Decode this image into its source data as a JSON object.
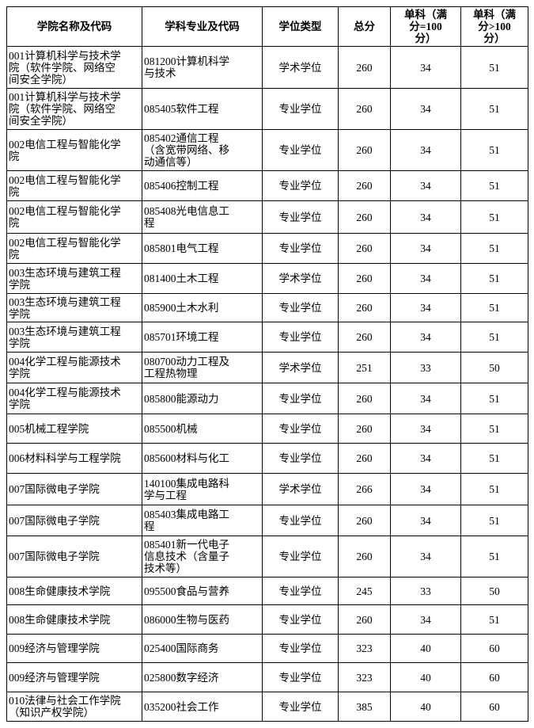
{
  "table": {
    "headers": [
      "学院名称及代码",
      "学科专业及代码",
      "学位类型",
      "总分",
      "单科（满\n分=100\n分）",
      "单科（满\n分>100\n分）"
    ],
    "rows": [
      {
        "college": "001计算机科学与技术学\n院（软件学院、网络空\n间安全学院）",
        "major": "081200计算机科学\n与技术",
        "degree_type": "学术学位",
        "total": "260",
        "sub_max100": "34",
        "sub_over100": "51"
      },
      {
        "college": "001计算机科学与技术学\n院（软件学院、网络空\n间安全学院）",
        "major": "085405软件工程",
        "degree_type": "专业学位",
        "total": "260",
        "sub_max100": "34",
        "sub_over100": "51"
      },
      {
        "college": "002电信工程与智能化学\n院",
        "major": "085402通信工程\n（含宽带网络、移\n动通信等）",
        "degree_type": "专业学位",
        "total": "260",
        "sub_max100": "34",
        "sub_over100": "51"
      },
      {
        "college": "002电信工程与智能化学\n院",
        "major": "085406控制工程",
        "degree_type": "专业学位",
        "total": "260",
        "sub_max100": "34",
        "sub_over100": "51"
      },
      {
        "college": "002电信工程与智能化学\n院",
        "major": "085408光电信息工\n程",
        "degree_type": "专业学位",
        "total": "260",
        "sub_max100": "34",
        "sub_over100": "51"
      },
      {
        "college": "002电信工程与智能化学\n院",
        "major": "085801电气工程",
        "degree_type": "专业学位",
        "total": "260",
        "sub_max100": "34",
        "sub_over100": "51"
      },
      {
        "college": "003生态环境与建筑工程\n学院",
        "major": "081400土木工程",
        "degree_type": "学术学位",
        "total": "260",
        "sub_max100": "34",
        "sub_over100": "51"
      },
      {
        "college": "003生态环境与建筑工程\n学院",
        "major": "085900土木水利",
        "degree_type": "专业学位",
        "total": "260",
        "sub_max100": "34",
        "sub_over100": "51"
      },
      {
        "college": "003生态环境与建筑工程\n学院",
        "major": "085701环境工程",
        "degree_type": "专业学位",
        "total": "260",
        "sub_max100": "34",
        "sub_over100": "51"
      },
      {
        "college": "004化学工程与能源技术\n学院",
        "major": "080700动力工程及\n工程热物理",
        "degree_type": "学术学位",
        "total": "251",
        "sub_max100": "33",
        "sub_over100": "50"
      },
      {
        "college": "004化学工程与能源技术\n学院",
        "major": "085800能源动力",
        "degree_type": "专业学位",
        "total": "260",
        "sub_max100": "34",
        "sub_over100": "51"
      },
      {
        "college": "005机械工程学院",
        "major": "085500机械",
        "degree_type": "专业学位",
        "total": "260",
        "sub_max100": "34",
        "sub_over100": "51"
      },
      {
        "college": "006材料科学与工程学院",
        "major": "085600材料与化工",
        "degree_type": "专业学位",
        "total": "260",
        "sub_max100": "34",
        "sub_over100": "51"
      },
      {
        "college": "007国际微电子学院",
        "major": "140100集成电路科\n学与工程",
        "degree_type": "学术学位",
        "total": "266",
        "sub_max100": "34",
        "sub_over100": "51"
      },
      {
        "college": "007国际微电子学院",
        "major": "085403集成电路工\n程",
        "degree_type": "专业学位",
        "total": "260",
        "sub_max100": "34",
        "sub_over100": "51"
      },
      {
        "college": "007国际微电子学院",
        "major": "085401新一代电子\n信息技术（含量子\n技术等）",
        "degree_type": "专业学位",
        "total": "260",
        "sub_max100": "34",
        "sub_over100": "51"
      },
      {
        "college": "008生命健康技术学院",
        "major": "095500食品与营养",
        "degree_type": "专业学位",
        "total": "245",
        "sub_max100": "33",
        "sub_over100": "50"
      },
      {
        "college": "008生命健康技术学院",
        "major": "086000生物与医药",
        "degree_type": "专业学位",
        "total": "260",
        "sub_max100": "34",
        "sub_over100": "51"
      },
      {
        "college": "009经济与管理学院",
        "major": "025400国际商务",
        "degree_type": "专业学位",
        "total": "323",
        "sub_max100": "40",
        "sub_over100": "60"
      },
      {
        "college": "009经济与管理学院",
        "major": "025800数字经济",
        "degree_type": "专业学位",
        "total": "323",
        "sub_max100": "40",
        "sub_over100": "60"
      },
      {
        "college": "010法律与社会工作学院\n（知识产权学院）",
        "major": "035200社会工作",
        "degree_type": "专业学位",
        "total": "385",
        "sub_max100": "40",
        "sub_over100": "60"
      }
    ]
  }
}
